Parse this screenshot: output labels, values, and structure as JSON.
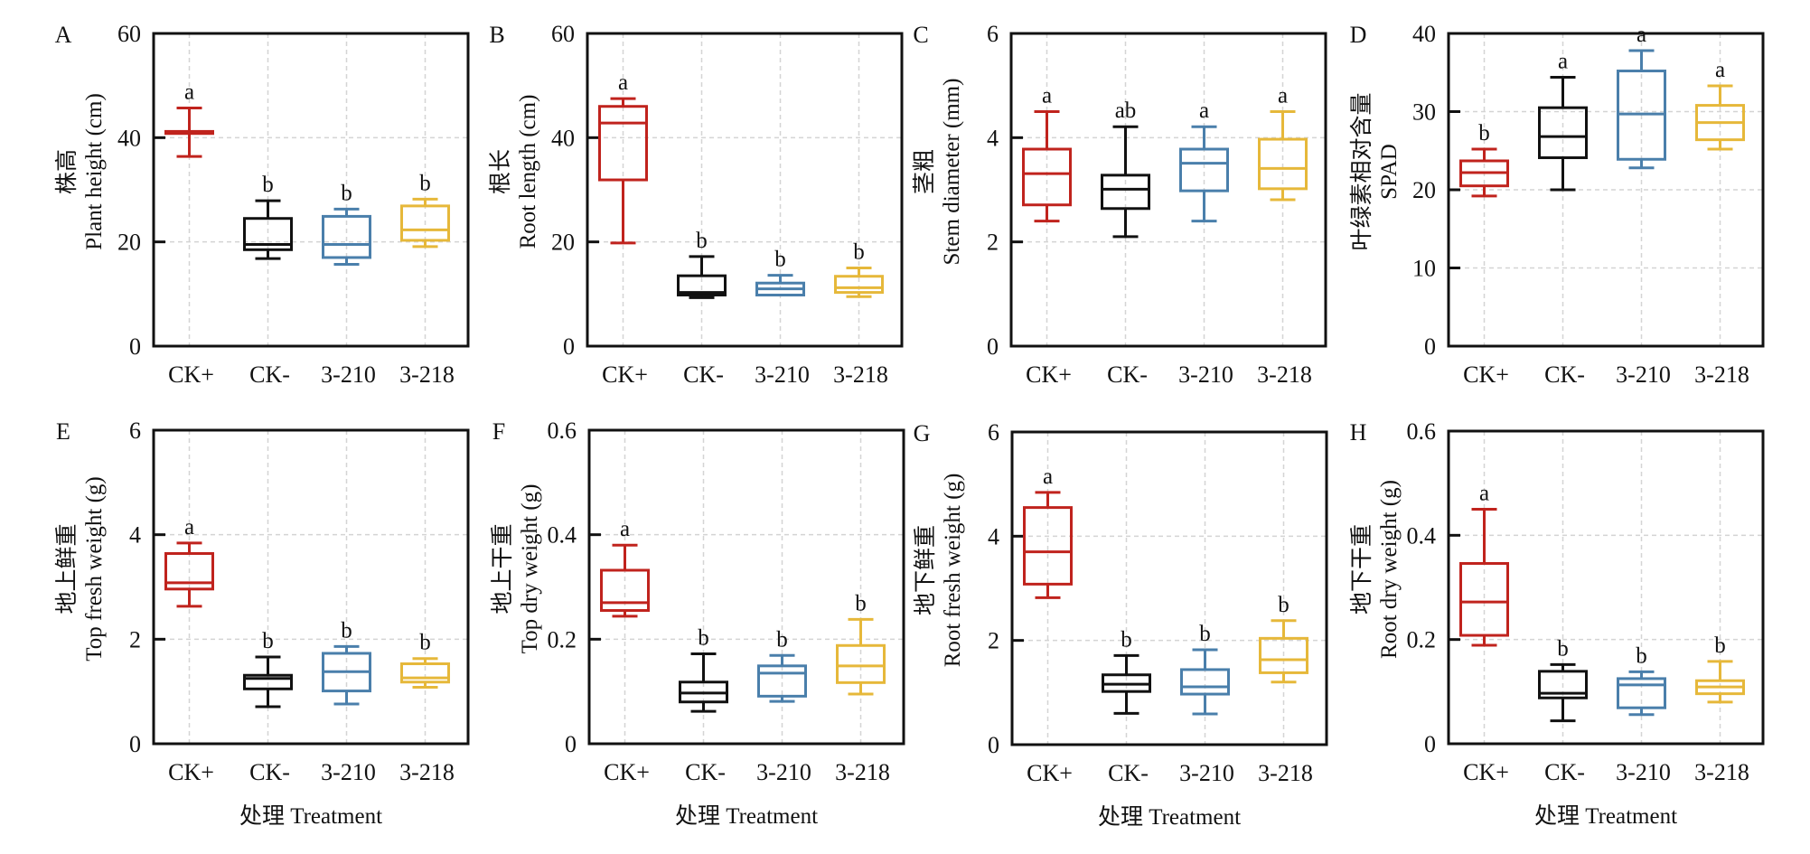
{
  "chart_data": [
    {
      "type": "box",
      "panel": "A",
      "ylabel_cn": "株高",
      "ylabel": "Plant height (cm)",
      "xlabel": "",
      "ylim": [
        0,
        60
      ],
      "yticks": [
        0,
        20,
        40,
        60
      ],
      "grid": true,
      "categories": [
        "CK+",
        "CK-",
        "3-210",
        "3-218"
      ],
      "boxes": [
        {
          "min": 36.4,
          "q1": 40.8,
          "median": 41.0,
          "q3": 41.2,
          "max": 45.7,
          "sig": "a"
        },
        {
          "min": 16.8,
          "q1": 18.5,
          "median": 19.5,
          "q3": 24.5,
          "max": 27.9,
          "sig": "b"
        },
        {
          "min": 15.7,
          "q1": 17.0,
          "median": 19.5,
          "q3": 24.9,
          "max": 26.3,
          "sig": "b"
        },
        {
          "min": 19.1,
          "q1": 20.3,
          "median": 22.3,
          "q3": 26.9,
          "max": 28.2,
          "sig": "b"
        }
      ]
    },
    {
      "type": "box",
      "panel": "B",
      "ylabel_cn": "根长",
      "ylabel": "Root length (cm)",
      "xlabel": "",
      "ylim": [
        0,
        60
      ],
      "yticks": [
        0,
        20,
        40,
        60
      ],
      "grid": true,
      "categories": [
        "CK+",
        "CK-",
        "3-210",
        "3-218"
      ],
      "boxes": [
        {
          "min": 19.8,
          "q1": 31.9,
          "median": 42.8,
          "q3": 46.0,
          "max": 47.5,
          "sig": "a"
        },
        {
          "min": 9.3,
          "q1": 9.8,
          "median": 10.3,
          "q3": 13.5,
          "max": 17.2,
          "sig": "b"
        },
        {
          "min": 9.8,
          "q1": 9.8,
          "median": 11.0,
          "q3": 12.1,
          "max": 13.6,
          "sig": "b"
        },
        {
          "min": 9.5,
          "q1": 10.3,
          "median": 11.2,
          "q3": 13.4,
          "max": 15.0,
          "sig": "b"
        }
      ]
    },
    {
      "type": "box",
      "panel": "C",
      "ylabel_cn": "茎粗",
      "ylabel": "Stem diameter (mm)",
      "xlabel": "",
      "ylim": [
        0,
        6
      ],
      "yticks": [
        0,
        2,
        4,
        6
      ],
      "grid": true,
      "categories": [
        "CK+",
        "CK-",
        "3-210",
        "3-218"
      ],
      "boxes": [
        {
          "min": 2.4,
          "q1": 2.71,
          "median": 3.31,
          "q3": 3.78,
          "max": 4.5,
          "sig": "a"
        },
        {
          "min": 2.1,
          "q1": 2.64,
          "median": 3.01,
          "q3": 3.28,
          "max": 4.21,
          "sig": "ab"
        },
        {
          "min": 2.4,
          "q1": 2.98,
          "median": 3.51,
          "q3": 3.78,
          "max": 4.21,
          "sig": "a"
        },
        {
          "min": 2.81,
          "q1": 3.02,
          "median": 3.41,
          "q3": 3.97,
          "max": 4.5,
          "sig": "a"
        }
      ]
    },
    {
      "type": "box",
      "panel": "D",
      "ylabel_cn": "叶绿素相对含量",
      "ylabel": "SPAD",
      "xlabel": "",
      "ylim": [
        0,
        40
      ],
      "yticks": [
        0,
        10,
        20,
        30,
        40
      ],
      "grid": true,
      "categories": [
        "CK+",
        "CK-",
        "3-210",
        "3-218"
      ],
      "boxes": [
        {
          "min": 19.2,
          "q1": 20.5,
          "median": 22.2,
          "q3": 23.7,
          "max": 25.2,
          "sig": "b"
        },
        {
          "min": 20.0,
          "q1": 24.1,
          "median": 26.8,
          "q3": 30.5,
          "max": 34.4,
          "sig": "a"
        },
        {
          "min": 22.8,
          "q1": 23.9,
          "median": 29.7,
          "q3": 35.2,
          "max": 37.8,
          "sig": "a"
        },
        {
          "min": 25.2,
          "q1": 26.4,
          "median": 28.6,
          "q3": 30.8,
          "max": 33.3,
          "sig": "a"
        }
      ]
    },
    {
      "type": "box",
      "panel": "E",
      "ylabel_cn": "地上鲜重",
      "ylabel": "Top fresh weight (g)",
      "xlabel": "处理 Treatment",
      "ylim": [
        0,
        6
      ],
      "yticks": [
        0,
        2,
        4,
        6
      ],
      "grid": true,
      "categories": [
        "CK+",
        "CK-",
        "3-210",
        "3-218"
      ],
      "boxes": [
        {
          "min": 2.63,
          "q1": 2.96,
          "median": 3.08,
          "q3": 3.64,
          "max": 3.84,
          "sig": "a"
        },
        {
          "min": 0.71,
          "q1": 1.05,
          "median": 1.25,
          "q3": 1.31,
          "max": 1.66,
          "sig": "b"
        },
        {
          "min": 0.76,
          "q1": 1.01,
          "median": 1.38,
          "q3": 1.73,
          "max": 1.86,
          "sig": "b"
        },
        {
          "min": 1.08,
          "q1": 1.18,
          "median": 1.26,
          "q3": 1.53,
          "max": 1.63,
          "sig": "b"
        }
      ]
    },
    {
      "type": "box",
      "panel": "F",
      "ylabel_cn": "地上干重",
      "ylabel": "Top dry weight (g)",
      "xlabel": "处理 Treatment",
      "ylim": [
        0,
        0.6
      ],
      "yticks": [
        0,
        0.2,
        0.4,
        0.6
      ],
      "grid": true,
      "categories": [
        "CK+",
        "CK-",
        "3-210",
        "3-218"
      ],
      "boxes": [
        {
          "min": 0.244,
          "q1": 0.255,
          "median": 0.27,
          "q3": 0.332,
          "max": 0.38,
          "sig": "a"
        },
        {
          "min": 0.062,
          "q1": 0.08,
          "median": 0.097,
          "q3": 0.118,
          "max": 0.172,
          "sig": "b"
        },
        {
          "min": 0.081,
          "q1": 0.091,
          "median": 0.135,
          "q3": 0.149,
          "max": 0.169,
          "sig": "b"
        },
        {
          "min": 0.095,
          "q1": 0.117,
          "median": 0.149,
          "q3": 0.188,
          "max": 0.238,
          "sig": "b"
        }
      ]
    },
    {
      "type": "box",
      "panel": "G",
      "ylabel_cn": "地下鲜重",
      "ylabel": "Root fresh weight (g)",
      "xlabel": "处理 Treatment",
      "ylim": [
        0,
        6
      ],
      "yticks": [
        0,
        2,
        4,
        6
      ],
      "grid": true,
      "categories": [
        "CK+",
        "CK-",
        "3-210",
        "3-218"
      ],
      "boxes": [
        {
          "min": 2.82,
          "q1": 3.08,
          "median": 3.7,
          "q3": 4.55,
          "max": 4.84,
          "sig": "a"
        },
        {
          "min": 0.6,
          "q1": 1.02,
          "median": 1.16,
          "q3": 1.34,
          "max": 1.71,
          "sig": "b"
        },
        {
          "min": 0.59,
          "q1": 0.97,
          "median": 1.11,
          "q3": 1.44,
          "max": 1.82,
          "sig": "b"
        },
        {
          "min": 1.2,
          "q1": 1.38,
          "median": 1.63,
          "q3": 2.04,
          "max": 2.38,
          "sig": "b"
        }
      ]
    },
    {
      "type": "box",
      "panel": "H",
      "ylabel_cn": "地下干重",
      "ylabel": "Root dry weight (g)",
      "xlabel": "处理 Treatment",
      "ylim": [
        0,
        0.6
      ],
      "yticks": [
        0,
        0.2,
        0.4,
        0.6
      ],
      "grid": true,
      "categories": [
        "CK+",
        "CK-",
        "3-210",
        "3-218"
      ],
      "boxes": [
        {
          "min": 0.189,
          "q1": 0.208,
          "median": 0.272,
          "q3": 0.346,
          "max": 0.45,
          "sig": "a"
        },
        {
          "min": 0.044,
          "q1": 0.088,
          "median": 0.097,
          "q3": 0.139,
          "max": 0.152,
          "sig": "b"
        },
        {
          "min": 0.056,
          "q1": 0.069,
          "median": 0.113,
          "q3": 0.125,
          "max": 0.138,
          "sig": "b"
        },
        {
          "min": 0.08,
          "q1": 0.096,
          "median": 0.109,
          "q3": 0.121,
          "max": 0.158,
          "sig": "b"
        }
      ]
    }
  ],
  "series_colors": {
    "CK+": "#c0231d",
    "CK-": "#111111",
    "3-210": "#4a7fab",
    "3-218": "#e6b83a"
  }
}
